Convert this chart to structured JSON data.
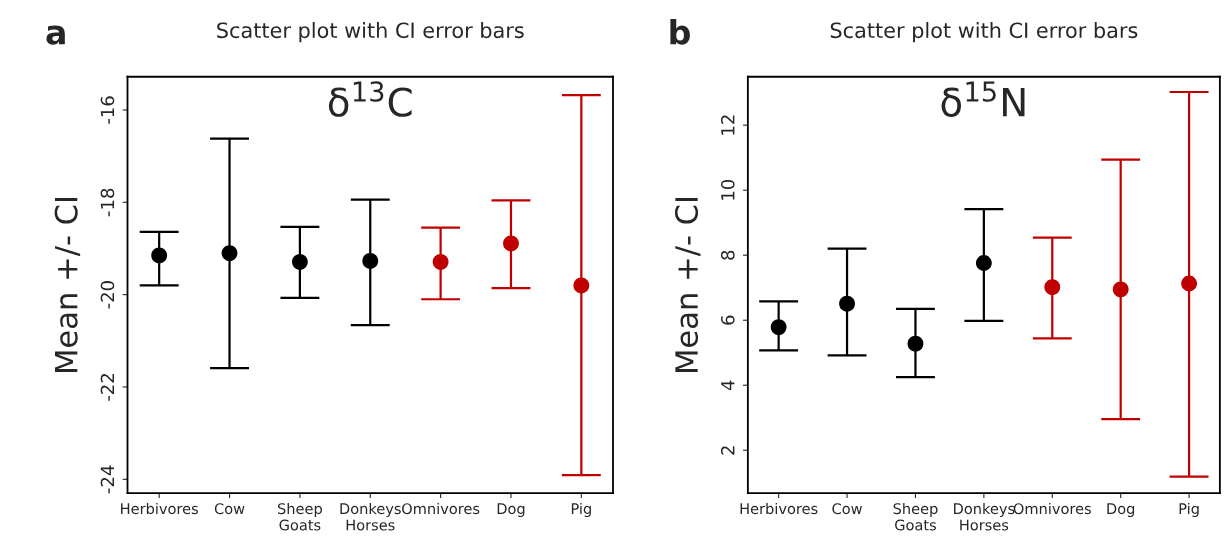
{
  "chart_data": [
    {
      "type": "scatter",
      "title": "Scatter plot with CI error bars",
      "ylabel": "Mean +/- CI",
      "annotations": [
        "a",
        "δ$^{13}$C"
      ],
      "categories": [
        "Herbivores",
        "Cow",
        "Sheep\nGoats",
        "Donkeys\nHorses",
        "Omnivores",
        "Dog",
        "Pig"
      ],
      "values": [
        -19.15,
        -19.1,
        -19.29,
        -19.27,
        -19.29,
        -18.89,
        -19.8
      ],
      "errors": [
        [
          -19.8,
          -18.64
        ],
        [
          -21.59,
          -16.62
        ],
        [
          -20.07,
          -18.53
        ],
        [
          -20.66,
          -17.94
        ],
        [
          -20.1,
          -18.55
        ],
        [
          -19.86,
          -17.96
        ],
        [
          -23.91,
          -15.68
        ]
      ],
      "colors": [
        "#000000",
        "#000000",
        "#000000",
        "#000000",
        "#c00000",
        "#c00000",
        "#c00000"
      ],
      "ylim": [
        -24.3,
        -15.28
      ],
      "yticks": [
        -24,
        -22,
        -20,
        -18,
        -16
      ],
      "marker": "circle",
      "grid": false,
      "legend": false
    },
    {
      "type": "scatter",
      "title": "Scatter plot with CI error bars",
      "ylabel": "Mean +/- CI",
      "annotations": [
        "b",
        "δ$^{15}$N"
      ],
      "categories": [
        "Herbivores",
        "Cow",
        "Sheep\nGoats",
        "Donkeys\nHorses",
        "Omnivores",
        "Dog",
        "Pig"
      ],
      "values": [
        5.79,
        6.51,
        5.28,
        7.76,
        7.02,
        6.95,
        7.13
      ],
      "errors": [
        [
          5.07,
          6.58
        ],
        [
          4.92,
          8.2
        ],
        [
          4.25,
          6.35
        ],
        [
          5.98,
          9.42
        ],
        [
          5.44,
          8.54
        ],
        [
          2.96,
          10.94
        ],
        [
          1.19,
          13.02
        ]
      ],
      "colors": [
        "#000000",
        "#000000",
        "#000000",
        "#000000",
        "#c00000",
        "#c00000",
        "#c00000"
      ],
      "ylim": [
        0.68,
        13.49
      ],
      "yticks": [
        2,
        4,
        6,
        8,
        10,
        12
      ],
      "marker": "circle",
      "grid": false,
      "legend": false
    }
  ]
}
